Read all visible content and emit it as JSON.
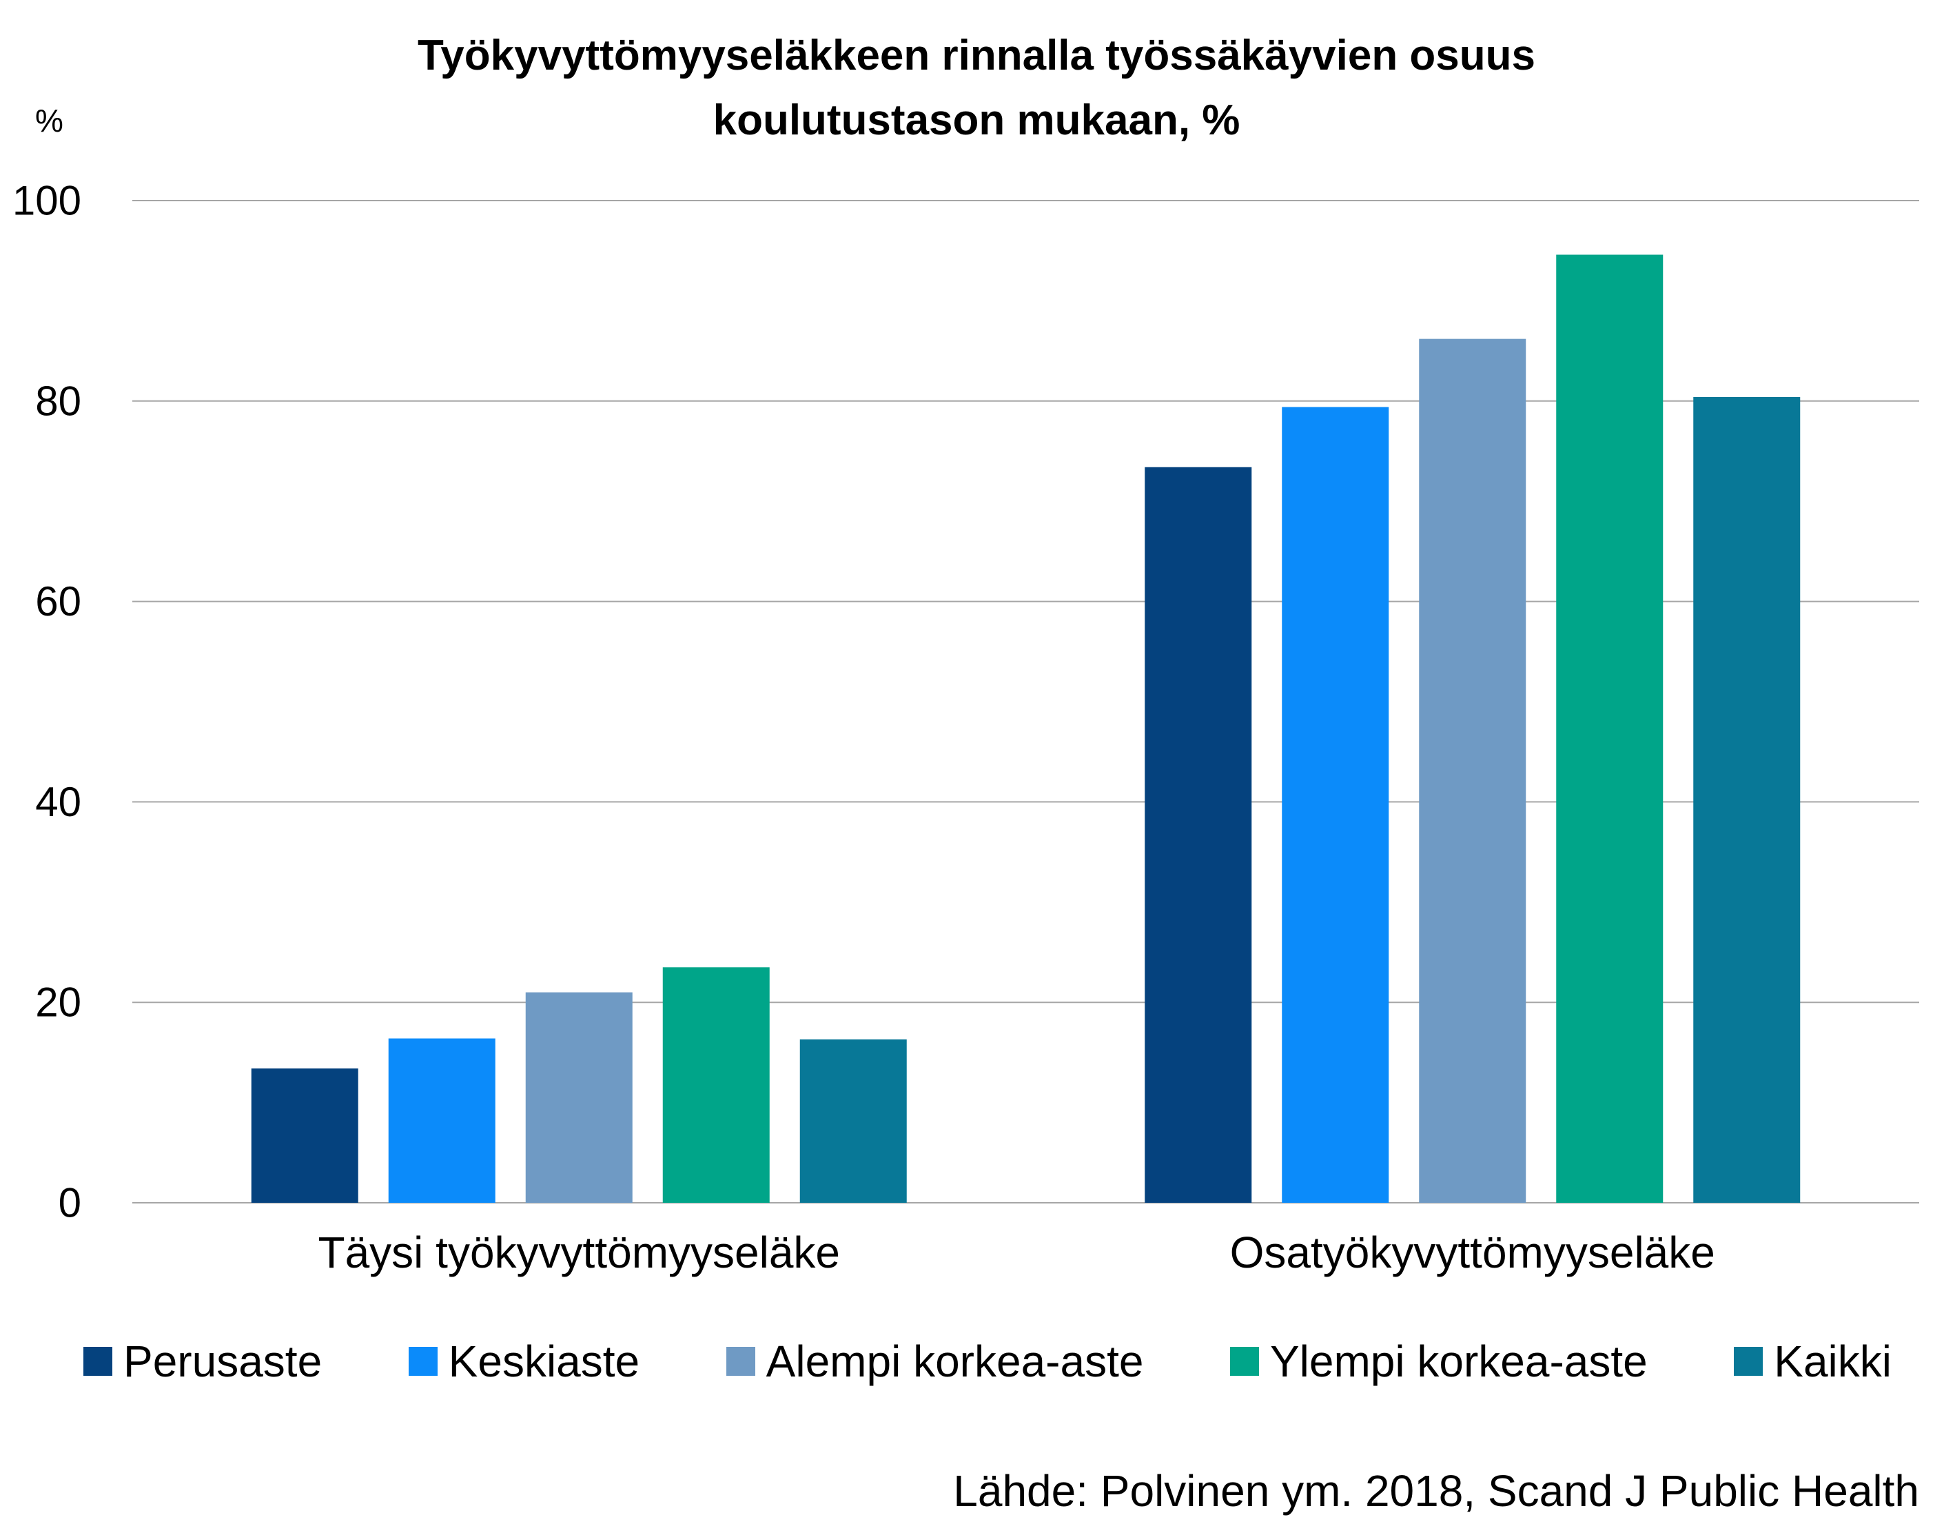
{
  "chart_data": {
    "type": "bar",
    "title": "Työkyvyttömyyseläkkeen rinnalla työssäkäyvien osuus koulutustason mukaan, %",
    "xlabel": "",
    "ylabel": "%",
    "ylim": [
      0,
      100
    ],
    "yticks": [
      0,
      20,
      40,
      60,
      80,
      100
    ],
    "categories": [
      "Täysi työkyvyttömyyseläke",
      "Osatyökyvyttömyyseläke"
    ],
    "series": [
      {
        "name": "Perusaste",
        "color": "#05427e",
        "values": [
          13.4,
          73.4
        ]
      },
      {
        "name": "Keskiaste",
        "color": "#0b8bfa",
        "values": [
          16.4,
          79.4
        ]
      },
      {
        "name": "Alempi korkea-aste",
        "color": "#6f9ac4",
        "values": [
          21.0,
          86.2
        ]
      },
      {
        "name": "Ylempi korkea-aste",
        "color": "#00a589",
        "values": [
          23.5,
          94.6
        ]
      },
      {
        "name": "Kaikki",
        "color": "#087897",
        "values": [
          16.3,
          80.4
        ]
      }
    ],
    "grid": true,
    "legend": "bottom",
    "source": "Lähde: Polvinen ym. 2018, Scand J Public Health"
  },
  "colors": {
    "gridline": "#a6a6a6",
    "text": "#000000",
    "background": "#ffffff"
  }
}
